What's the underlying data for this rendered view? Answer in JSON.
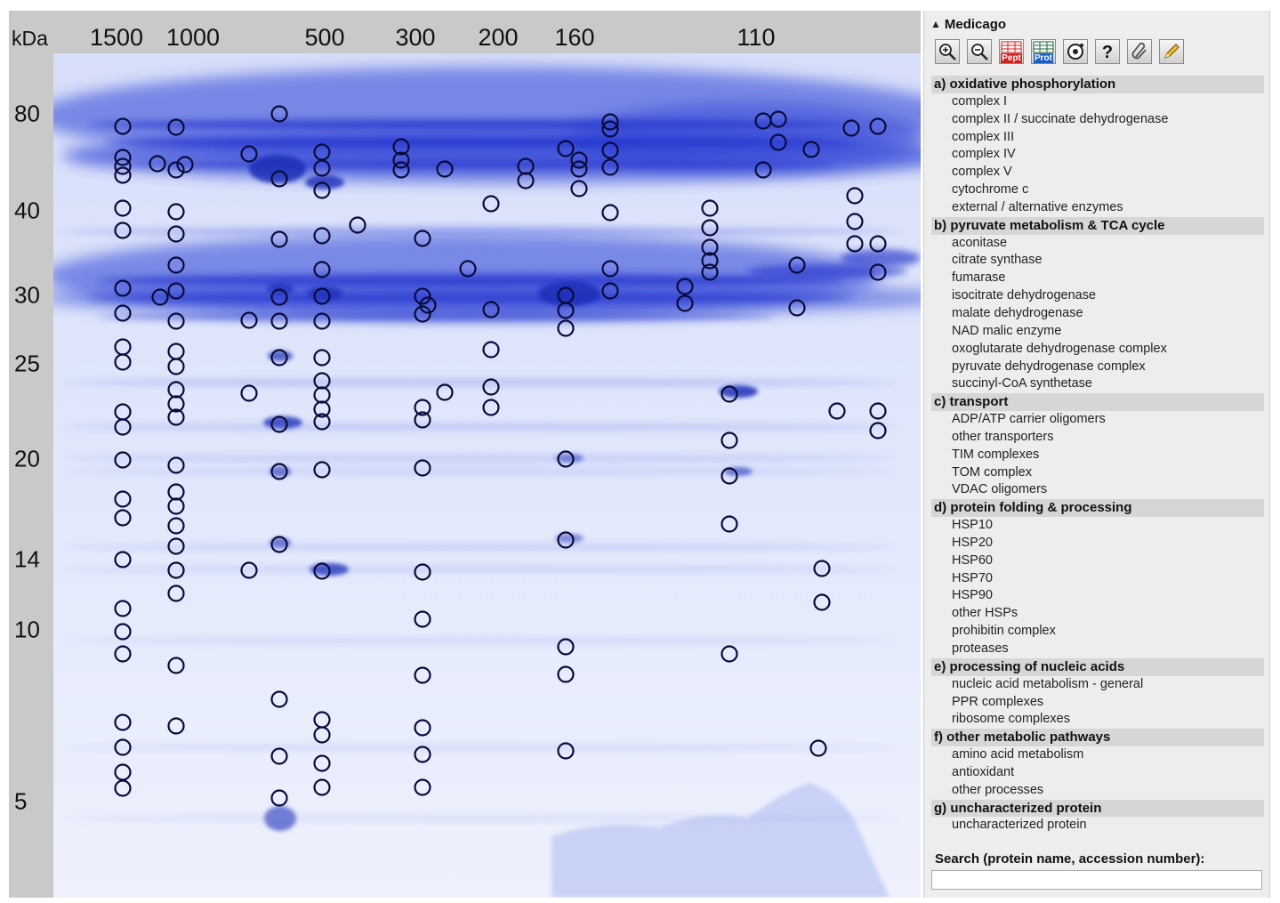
{
  "gel": {
    "kda_label": "kDa",
    "top_markers": [
      "1500",
      "1000",
      "500",
      "300",
      "200",
      "160",
      "110"
    ],
    "side_markers": [
      "80",
      "40",
      "30",
      "25",
      "20",
      "14",
      "10",
      "5"
    ]
  },
  "panel": {
    "title": "Medicago",
    "toolbar": [
      {
        "name": "zoom-in",
        "icon": "zoom-in-icon"
      },
      {
        "name": "zoom-out",
        "icon": "zoom-out-icon"
      },
      {
        "name": "peptide-table",
        "icon": "peptide-table-icon",
        "text": "Pept"
      },
      {
        "name": "protein-table",
        "icon": "protein-table-icon",
        "text": "Prot"
      },
      {
        "name": "settings",
        "icon": "circle-settings-icon"
      },
      {
        "name": "help",
        "icon": "help-icon"
      },
      {
        "name": "attach",
        "icon": "paperclip-icon"
      },
      {
        "name": "edit",
        "icon": "pencil-icon"
      }
    ],
    "categories": [
      {
        "title": "a) oxidative phosphorylation",
        "items": [
          "complex I",
          "complex II / succinate dehydrogenase",
          "complex III",
          "complex IV",
          "complex V",
          "cytochrome c",
          "external / alternative enzymes"
        ]
      },
      {
        "title": "b) pyruvate metabolism & TCA cycle",
        "items": [
          "aconitase",
          "citrate synthase",
          "fumarase",
          "isocitrate dehydrogenase",
          "malate dehydrogenase",
          "NAD malic enzyme",
          "oxoglutarate dehydrogenase complex",
          "pyruvate dehydrogenase complex",
          "succinyl-CoA synthetase"
        ]
      },
      {
        "title": "c) transport",
        "items": [
          "ADP/ATP carrier oligomers",
          "other transporters",
          "TIM complexes",
          "TOM complex",
          "VDAC oligomers"
        ]
      },
      {
        "title": "d) protein folding & processing",
        "items": [
          "HSP10",
          "HSP20",
          "HSP60",
          "HSP70",
          "HSP90",
          "other HSPs",
          "prohibitin complex",
          "proteases"
        ]
      },
      {
        "title": "e) processing of nucleic acids",
        "items": [
          "nucleic acid metabolism - general",
          "PPR complexes",
          "ribosome complexes"
        ]
      },
      {
        "title": "f) other metabolic pathways",
        "items": [
          "amino acid metabolism",
          "antioxidant",
          "other processes"
        ]
      },
      {
        "title": "g) uncharacterized protein",
        "items": [
          "uncharacterized protein"
        ]
      }
    ],
    "search": {
      "label": "Search (protein name, accession number):",
      "value": ""
    }
  },
  "colors": {
    "gel_background": "#e7edfb",
    "band": "#2a3fd6",
    "spot_outline": "#0a0a3a",
    "panel_bg": "#ededed"
  }
}
